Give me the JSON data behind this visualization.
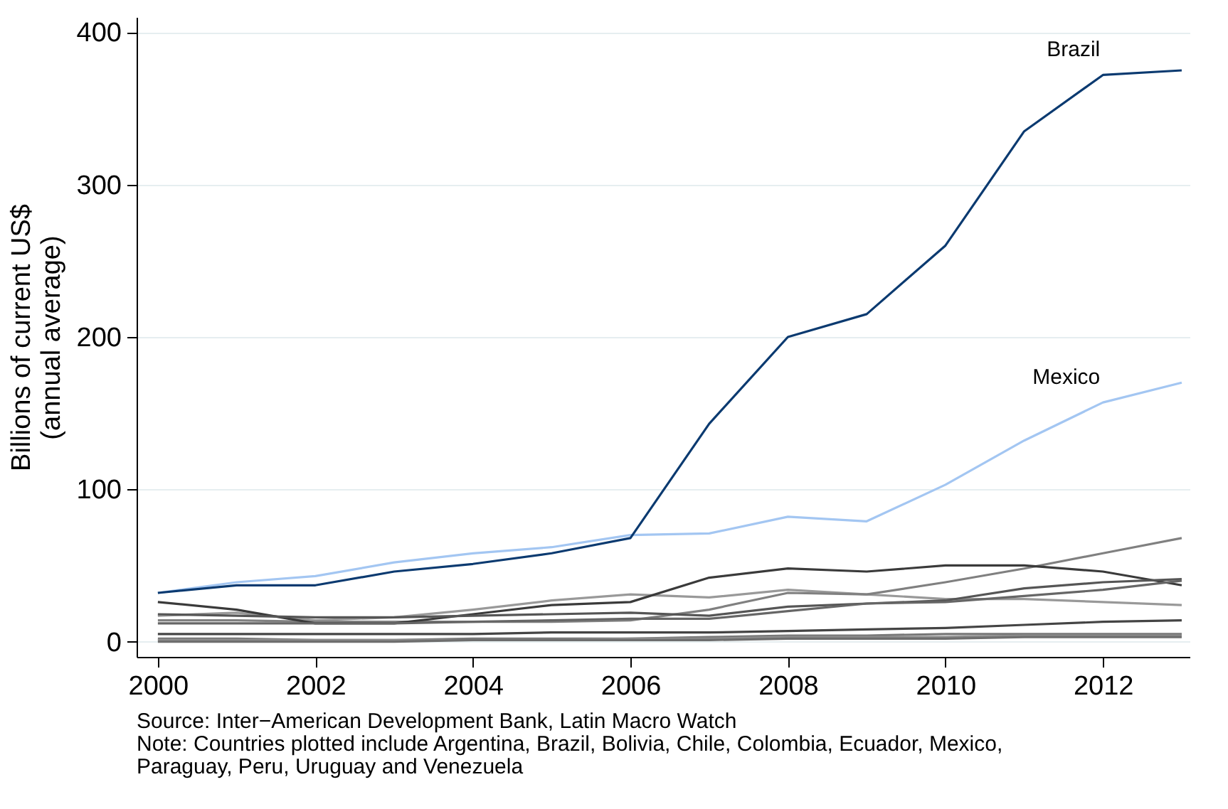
{
  "chart_data": {
    "type": "line",
    "ylabel": "Billions of current US$\n(annual average)",
    "x": [
      2000,
      2001,
      2002,
      2003,
      2004,
      2005,
      2006,
      2007,
      2008,
      2009,
      2010,
      2011,
      2012,
      2013
    ],
    "xlim": [
      1999.73,
      2013.1
    ],
    "xticks": [
      2000,
      2002,
      2004,
      2006,
      2008,
      2010,
      2012
    ],
    "ylim": [
      -10,
      410
    ],
    "yticks": [
      0,
      100,
      200,
      300,
      400
    ],
    "grid": "y",
    "legend": false,
    "line_style": "solid",
    "series": [
      {
        "color": "#999999",
        "values": [
          17,
          19,
          14,
          16,
          21,
          27,
          31,
          29,
          34,
          31,
          28,
          28,
          26,
          24
        ]
      },
      {
        "color": "#808080",
        "values": [
          14,
          14,
          13,
          13,
          13,
          13,
          14,
          21,
          32,
          31,
          39,
          48,
          58,
          68
        ]
      },
      {
        "color": "#3a3a3a",
        "values": [
          26,
          21,
          12,
          12,
          18,
          24,
          26,
          42,
          48,
          46,
          50,
          50,
          46,
          37
        ]
      },
      {
        "color": "#555555",
        "values": [
          18,
          17,
          16,
          16,
          17,
          18,
          19,
          17,
          23,
          25,
          27,
          35,
          39,
          41
        ]
      },
      {
        "color": "#666666",
        "values": [
          12,
          12,
          12,
          12,
          13,
          14,
          15,
          15,
          20,
          25,
          26,
          30,
          34,
          40
        ]
      },
      {
        "color": "#444444",
        "values": [
          5,
          5,
          5,
          5,
          5,
          6,
          6,
          6,
          7,
          8,
          9,
          11,
          13,
          14
        ]
      },
      {
        "color": "#777777",
        "values": [
          2,
          2,
          1,
          1,
          2,
          2,
          2,
          3,
          4,
          4,
          5,
          5,
          5,
          5
        ]
      },
      {
        "color": "#8c8c8c",
        "values": [
          1,
          1,
          1,
          1,
          1,
          1,
          2,
          2,
          3,
          3,
          3,
          4,
          4,
          4
        ]
      },
      {
        "color": "#6e6e6e",
        "values": [
          0,
          0,
          0,
          0,
          1,
          1,
          1,
          1,
          2,
          2,
          2,
          3,
          3,
          3
        ]
      },
      {
        "name": "Mexico",
        "color": "#a3c6f2",
        "values": [
          32,
          39,
          43,
          52,
          58,
          62,
          70,
          71,
          82,
          79,
          103,
          132,
          157,
          170
        ]
      },
      {
        "name": "Brazil",
        "color": "#0b3a70",
        "values": [
          32,
          37,
          37,
          46,
          51,
          58,
          68,
          143,
          200,
          215,
          260,
          335,
          372,
          375
        ]
      }
    ],
    "annotations": [
      "Source: Inter−American Development Bank, Latin Macro Watch",
      "Note: Countries plotted include Argentina, Brazil, Bolivia, Chile, Colombia, Ecuador, Mexico,",
      "Paraguay, Peru, Uruguay and Venezuela"
    ]
  }
}
